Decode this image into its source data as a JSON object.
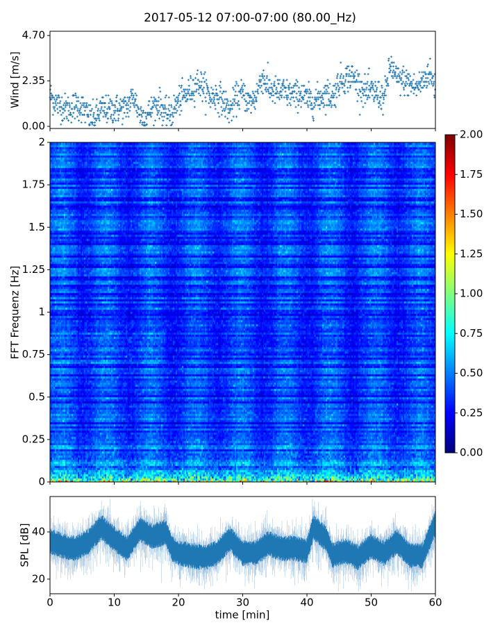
{
  "title": "2017-05-12 07:00-07:00 (80.00_Hz)",
  "colors": {
    "series": "#1f77b4",
    "series_light": "#a9c9e4"
  },
  "chart_data": [
    {
      "type": "scatter",
      "name": "wind",
      "ylabel": "Wind [m/s]",
      "xlim": [
        0,
        60
      ],
      "ylim": [
        -0.11,
        4.92
      ],
      "yticks": [
        "0.00",
        "2.35",
        "4.70"
      ],
      "ytick_values": [
        0,
        2.35,
        4.7
      ],
      "minute_means": [
        1.6,
        1.2,
        1.0,
        0.9,
        1.1,
        1.0,
        0.5,
        0.4,
        0.9,
        0.8,
        0.9,
        0.9,
        1.0,
        1.6,
        0.6,
        0.5,
        1.0,
        1.2,
        0.6,
        0.7,
        1.3,
        1.6,
        1.9,
        2.3,
        2.0,
        1.5,
        1.6,
        1.3,
        0.8,
        1.5,
        1.7,
        1.2,
        1.5,
        2.6,
        2.0,
        1.8,
        1.8,
        1.7,
        1.6,
        1.7,
        1.4,
        1.3,
        1.5,
        1.7,
        1.5,
        2.3,
        2.5,
        2.6,
        2.2,
        1.8,
        1.8,
        1.7,
        1.4,
        3.2,
        2.4,
        2.4,
        2.2,
        2.0,
        2.3,
        2.8,
        2.0
      ]
    },
    {
      "type": "heatmap",
      "name": "spectrogram",
      "ylabel": "FFT Frequenz [Hz]",
      "xlim": [
        0,
        60
      ],
      "ylim": [
        0,
        2
      ],
      "yticks": [
        "0",
        "0.25",
        "0.5",
        "0.75",
        "1",
        "1.25",
        "1.5",
        "1.75",
        "2"
      ],
      "ytick_values": [
        0,
        0.25,
        0.5,
        0.75,
        1,
        1.25,
        1.5,
        1.75,
        2
      ],
      "colormap": "jet",
      "clim": [
        0,
        2
      ],
      "colorbar_ticks": [
        "0.00",
        "0.25",
        "0.50",
        "0.75",
        "1.00",
        "1.25",
        "1.50",
        "1.75",
        "2.00"
      ],
      "colorbar_tick_values": [
        0,
        0.25,
        0.5,
        0.75,
        1,
        1.25,
        1.5,
        1.75,
        2
      ]
    },
    {
      "type": "line",
      "name": "spl",
      "ylabel": "SPL [dB]",
      "xlabel": "time [min]",
      "xlim": [
        0,
        60
      ],
      "ylim": [
        13.8,
        55
      ],
      "xticks": [
        "0",
        "10",
        "20",
        "30",
        "40",
        "50",
        "60"
      ],
      "xtick_values": [
        0,
        10,
        20,
        30,
        40,
        50,
        60
      ],
      "yticks": [
        "20",
        "40"
      ],
      "ytick_values": [
        20,
        40
      ],
      "x": [
        0,
        2,
        4,
        6,
        8,
        10,
        12,
        14,
        16,
        18,
        19,
        20,
        22,
        24,
        26,
        28,
        30,
        32,
        34,
        36,
        38,
        40,
        41,
        43,
        44,
        46,
        48,
        50,
        52,
        54,
        56,
        58,
        60
      ],
      "y": [
        36,
        34,
        33,
        36,
        42,
        37,
        33,
        41,
        38,
        40,
        33,
        31,
        30,
        29,
        31,
        37,
        31,
        31,
        35,
        33,
        33,
        32,
        42,
        37,
        30,
        32,
        29,
        34,
        31,
        36,
        30,
        30,
        44
      ]
    }
  ]
}
